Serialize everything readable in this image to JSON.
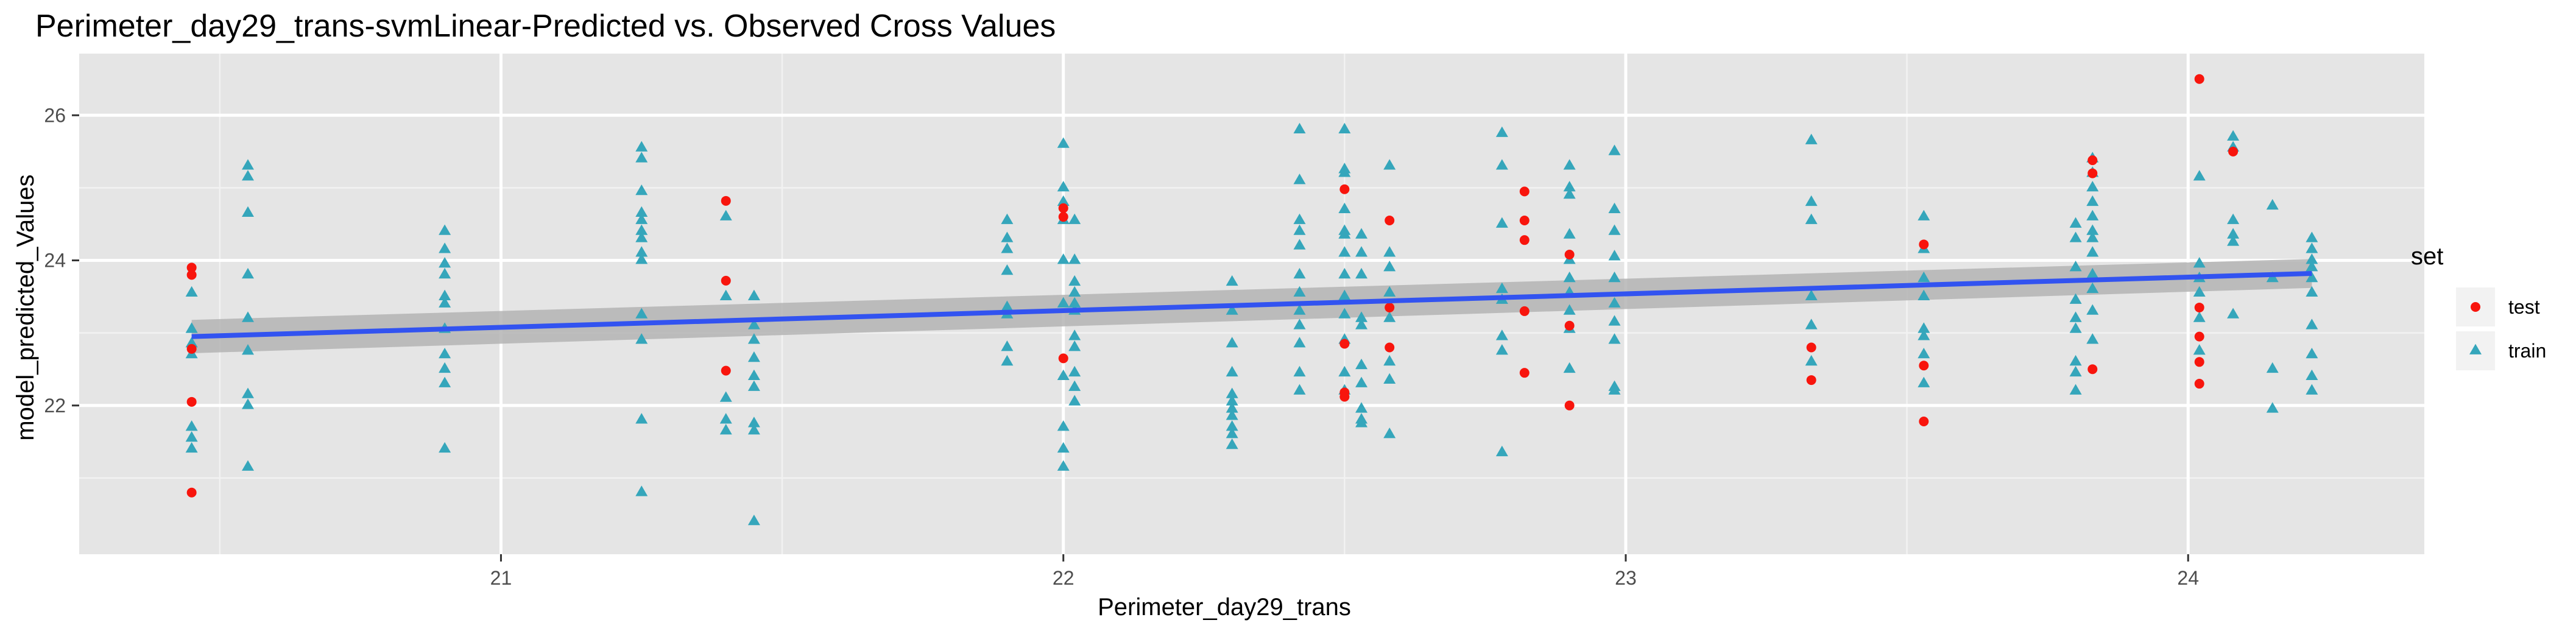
{
  "chart_data": {
    "type": "scatter",
    "title": "Perimeter_day29_trans-svmLinear-Predicted vs. Observed Cross Values",
    "xlabel": "Perimeter_day29_trans",
    "ylabel": "model_predicted_Values",
    "xlim": [
      20.25,
      24.42
    ],
    "ylim": [
      19.95,
      26.85
    ],
    "x_ticks": [
      21,
      22,
      23,
      24
    ],
    "y_ticks": [
      22,
      24,
      26
    ],
    "grid": true,
    "background": "#e5e5e5",
    "legend": {
      "title": "set",
      "position": "right",
      "entries": [
        {
          "label": "test",
          "color": "#f8150d",
          "shape": "circle"
        },
        {
          "label": "train",
          "color": "#35a6bb",
          "shape": "triangle"
        }
      ]
    },
    "series": [
      {
        "name": "test",
        "color": "#f8150d",
        "shape": "circle",
        "points": [
          [
            20.45,
            23.9
          ],
          [
            20.45,
            23.8
          ],
          [
            20.45,
            22.05
          ],
          [
            20.45,
            20.8
          ],
          [
            20.45,
            22.78
          ],
          [
            21.4,
            24.82
          ],
          [
            21.4,
            23.72
          ],
          [
            21.4,
            22.48
          ],
          [
            22.0,
            24.72
          ],
          [
            22.0,
            24.6
          ],
          [
            22.0,
            22.65
          ],
          [
            22.5,
            24.98
          ],
          [
            22.5,
            22.85
          ],
          [
            22.5,
            22.18
          ],
          [
            22.5,
            22.12
          ],
          [
            22.58,
            24.55
          ],
          [
            22.58,
            23.35
          ],
          [
            22.58,
            22.8
          ],
          [
            22.82,
            24.95
          ],
          [
            22.82,
            24.55
          ],
          [
            22.82,
            24.28
          ],
          [
            22.82,
            23.3
          ],
          [
            22.82,
            22.45
          ],
          [
            22.9,
            24.08
          ],
          [
            22.9,
            23.1
          ],
          [
            22.9,
            22.0
          ],
          [
            23.33,
            22.8
          ],
          [
            23.33,
            22.35
          ],
          [
            23.53,
            24.22
          ],
          [
            23.53,
            22.55
          ],
          [
            23.53,
            21.78
          ],
          [
            23.83,
            25.38
          ],
          [
            23.83,
            25.2
          ],
          [
            23.83,
            22.5
          ],
          [
            24.02,
            26.5
          ],
          [
            24.02,
            23.35
          ],
          [
            24.02,
            22.95
          ],
          [
            24.02,
            22.6
          ],
          [
            24.02,
            22.3
          ],
          [
            24.08,
            25.5
          ]
        ]
      },
      {
        "name": "train",
        "color": "#35a6bb",
        "shape": "triangle",
        "points": [
          [
            20.45,
            23.55
          ],
          [
            20.45,
            23.05
          ],
          [
            20.45,
            22.85
          ],
          [
            20.45,
            22.7
          ],
          [
            20.45,
            21.7
          ],
          [
            20.45,
            21.55
          ],
          [
            20.45,
            21.4
          ],
          [
            20.55,
            25.3
          ],
          [
            20.55,
            25.15
          ],
          [
            20.55,
            24.65
          ],
          [
            20.55,
            23.8
          ],
          [
            20.55,
            23.2
          ],
          [
            20.55,
            22.75
          ],
          [
            20.55,
            22.15
          ],
          [
            20.55,
            22.0
          ],
          [
            20.55,
            21.15
          ],
          [
            20.9,
            24.4
          ],
          [
            20.9,
            24.15
          ],
          [
            20.9,
            23.95
          ],
          [
            20.9,
            23.8
          ],
          [
            20.9,
            23.5
          ],
          [
            20.9,
            23.4
          ],
          [
            20.9,
            23.05
          ],
          [
            20.9,
            22.7
          ],
          [
            20.9,
            22.5
          ],
          [
            20.9,
            22.3
          ],
          [
            20.9,
            21.4
          ],
          [
            21.25,
            25.55
          ],
          [
            21.25,
            25.4
          ],
          [
            21.25,
            24.95
          ],
          [
            21.25,
            24.65
          ],
          [
            21.25,
            24.55
          ],
          [
            21.25,
            24.4
          ],
          [
            21.25,
            24.3
          ],
          [
            21.25,
            24.1
          ],
          [
            21.25,
            24.0
          ],
          [
            21.25,
            23.25
          ],
          [
            21.25,
            22.9
          ],
          [
            21.25,
            21.8
          ],
          [
            21.25,
            20.8
          ],
          [
            21.4,
            24.6
          ],
          [
            21.4,
            23.5
          ],
          [
            21.4,
            22.1
          ],
          [
            21.4,
            21.8
          ],
          [
            21.4,
            21.65
          ],
          [
            21.45,
            23.5
          ],
          [
            21.45,
            23.1
          ],
          [
            21.45,
            22.9
          ],
          [
            21.45,
            22.65
          ],
          [
            21.45,
            22.4
          ],
          [
            21.45,
            22.25
          ],
          [
            21.45,
            21.75
          ],
          [
            21.45,
            21.65
          ],
          [
            21.45,
            20.4
          ],
          [
            21.9,
            24.55
          ],
          [
            21.9,
            24.3
          ],
          [
            21.9,
            24.15
          ],
          [
            21.9,
            23.85
          ],
          [
            21.9,
            23.35
          ],
          [
            21.9,
            23.25
          ],
          [
            21.9,
            22.8
          ],
          [
            21.9,
            22.6
          ],
          [
            22.0,
            25.6
          ],
          [
            22.0,
            25.0
          ],
          [
            22.0,
            24.8
          ],
          [
            22.0,
            24.55
          ],
          [
            22.0,
            24.0
          ],
          [
            22.0,
            23.4
          ],
          [
            22.0,
            22.4
          ],
          [
            22.0,
            21.7
          ],
          [
            22.0,
            21.4
          ],
          [
            22.0,
            21.15
          ],
          [
            22.02,
            24.55
          ],
          [
            22.02,
            24.0
          ],
          [
            22.02,
            23.7
          ],
          [
            22.02,
            23.55
          ],
          [
            22.02,
            23.4
          ],
          [
            22.02,
            23.3
          ],
          [
            22.02,
            22.95
          ],
          [
            22.02,
            22.8
          ],
          [
            22.02,
            22.45
          ],
          [
            22.02,
            22.25
          ],
          [
            22.02,
            22.05
          ],
          [
            22.3,
            23.7
          ],
          [
            22.3,
            23.3
          ],
          [
            22.3,
            22.85
          ],
          [
            22.3,
            22.45
          ],
          [
            22.3,
            22.15
          ],
          [
            22.3,
            22.05
          ],
          [
            22.3,
            21.95
          ],
          [
            22.3,
            21.85
          ],
          [
            22.3,
            21.7
          ],
          [
            22.3,
            21.6
          ],
          [
            22.3,
            21.45
          ],
          [
            22.42,
            25.8
          ],
          [
            22.42,
            25.1
          ],
          [
            22.42,
            24.55
          ],
          [
            22.42,
            24.4
          ],
          [
            22.42,
            24.2
          ],
          [
            22.42,
            23.8
          ],
          [
            22.42,
            23.55
          ],
          [
            22.42,
            23.3
          ],
          [
            22.42,
            23.1
          ],
          [
            22.42,
            22.85
          ],
          [
            22.42,
            22.45
          ],
          [
            22.42,
            22.2
          ],
          [
            22.5,
            25.8
          ],
          [
            22.5,
            25.25
          ],
          [
            22.5,
            25.2
          ],
          [
            22.5,
            24.7
          ],
          [
            22.5,
            24.4
          ],
          [
            22.5,
            24.35
          ],
          [
            22.5,
            24.1
          ],
          [
            22.5,
            23.8
          ],
          [
            22.5,
            23.5
          ],
          [
            22.5,
            23.25
          ],
          [
            22.5,
            22.9
          ],
          [
            22.5,
            22.45
          ],
          [
            22.5,
            22.2
          ],
          [
            22.53,
            24.35
          ],
          [
            22.53,
            24.1
          ],
          [
            22.53,
            23.8
          ],
          [
            22.53,
            23.2
          ],
          [
            22.53,
            23.1
          ],
          [
            22.53,
            22.55
          ],
          [
            22.53,
            22.3
          ],
          [
            22.53,
            21.95
          ],
          [
            22.53,
            21.8
          ],
          [
            22.53,
            21.75
          ],
          [
            22.58,
            25.3
          ],
          [
            22.58,
            24.1
          ],
          [
            22.58,
            23.9
          ],
          [
            22.58,
            23.55
          ],
          [
            22.58,
            23.2
          ],
          [
            22.58,
            22.6
          ],
          [
            22.58,
            22.35
          ],
          [
            22.58,
            21.6
          ],
          [
            22.78,
            25.75
          ],
          [
            22.78,
            25.3
          ],
          [
            22.78,
            24.5
          ],
          [
            22.78,
            23.6
          ],
          [
            22.78,
            23.45
          ],
          [
            22.78,
            22.95
          ],
          [
            22.78,
            22.75
          ],
          [
            22.78,
            21.35
          ],
          [
            22.9,
            25.3
          ],
          [
            22.9,
            25.0
          ],
          [
            22.9,
            24.9
          ],
          [
            22.9,
            24.35
          ],
          [
            22.9,
            24.0
          ],
          [
            22.9,
            23.75
          ],
          [
            22.9,
            23.55
          ],
          [
            22.9,
            23.3
          ],
          [
            22.9,
            23.05
          ],
          [
            22.9,
            22.5
          ],
          [
            22.98,
            25.5
          ],
          [
            22.98,
            24.7
          ],
          [
            22.98,
            24.4
          ],
          [
            22.98,
            24.05
          ],
          [
            22.98,
            23.75
          ],
          [
            22.98,
            23.4
          ],
          [
            22.98,
            23.15
          ],
          [
            22.98,
            22.9
          ],
          [
            22.98,
            22.25
          ],
          [
            22.98,
            22.2
          ],
          [
            23.33,
            25.65
          ],
          [
            23.33,
            24.8
          ],
          [
            23.33,
            24.55
          ],
          [
            23.33,
            23.5
          ],
          [
            23.33,
            23.1
          ],
          [
            23.33,
            22.6
          ],
          [
            23.53,
            24.6
          ],
          [
            23.53,
            24.15
          ],
          [
            23.53,
            23.75
          ],
          [
            23.53,
            23.5
          ],
          [
            23.53,
            23.05
          ],
          [
            23.53,
            22.95
          ],
          [
            23.53,
            22.7
          ],
          [
            23.53,
            22.3
          ],
          [
            23.8,
            24.5
          ],
          [
            23.8,
            24.3
          ],
          [
            23.8,
            23.9
          ],
          [
            23.8,
            23.45
          ],
          [
            23.8,
            23.2
          ],
          [
            23.8,
            23.05
          ],
          [
            23.8,
            22.6
          ],
          [
            23.8,
            22.45
          ],
          [
            23.8,
            22.2
          ],
          [
            23.83,
            25.4
          ],
          [
            23.83,
            25.2
          ],
          [
            23.83,
            25.0
          ],
          [
            23.83,
            24.8
          ],
          [
            23.83,
            24.6
          ],
          [
            23.83,
            24.4
          ],
          [
            23.83,
            24.3
          ],
          [
            23.83,
            24.1
          ],
          [
            23.83,
            23.8
          ],
          [
            23.83,
            23.6
          ],
          [
            23.83,
            23.3
          ],
          [
            23.83,
            22.9
          ],
          [
            24.02,
            25.15
          ],
          [
            24.02,
            23.95
          ],
          [
            24.02,
            23.75
          ],
          [
            24.02,
            23.55
          ],
          [
            24.02,
            23.2
          ],
          [
            24.02,
            22.75
          ],
          [
            24.08,
            25.7
          ],
          [
            24.08,
            25.55
          ],
          [
            24.08,
            24.55
          ],
          [
            24.08,
            24.35
          ],
          [
            24.08,
            24.25
          ],
          [
            24.08,
            23.25
          ],
          [
            24.15,
            24.75
          ],
          [
            24.15,
            23.75
          ],
          [
            24.15,
            22.5
          ],
          [
            24.15,
            21.95
          ],
          [
            24.22,
            24.3
          ],
          [
            24.22,
            24.15
          ],
          [
            24.22,
            24.0
          ],
          [
            24.22,
            23.9
          ],
          [
            24.22,
            23.75
          ],
          [
            24.22,
            23.55
          ],
          [
            24.22,
            23.1
          ],
          [
            24.22,
            22.7
          ],
          [
            24.22,
            22.4
          ],
          [
            24.22,
            22.2
          ]
        ]
      }
    ],
    "smooth": {
      "method": "lm",
      "color": "#3253f0",
      "band_color": "#b4b4b4",
      "x": [
        20.45,
        24.22
      ],
      "y": [
        22.95,
        23.82
      ],
      "band_lower": [
        22.72,
        23.62
      ],
      "band_upper": [
        23.18,
        24.02
      ]
    }
  }
}
